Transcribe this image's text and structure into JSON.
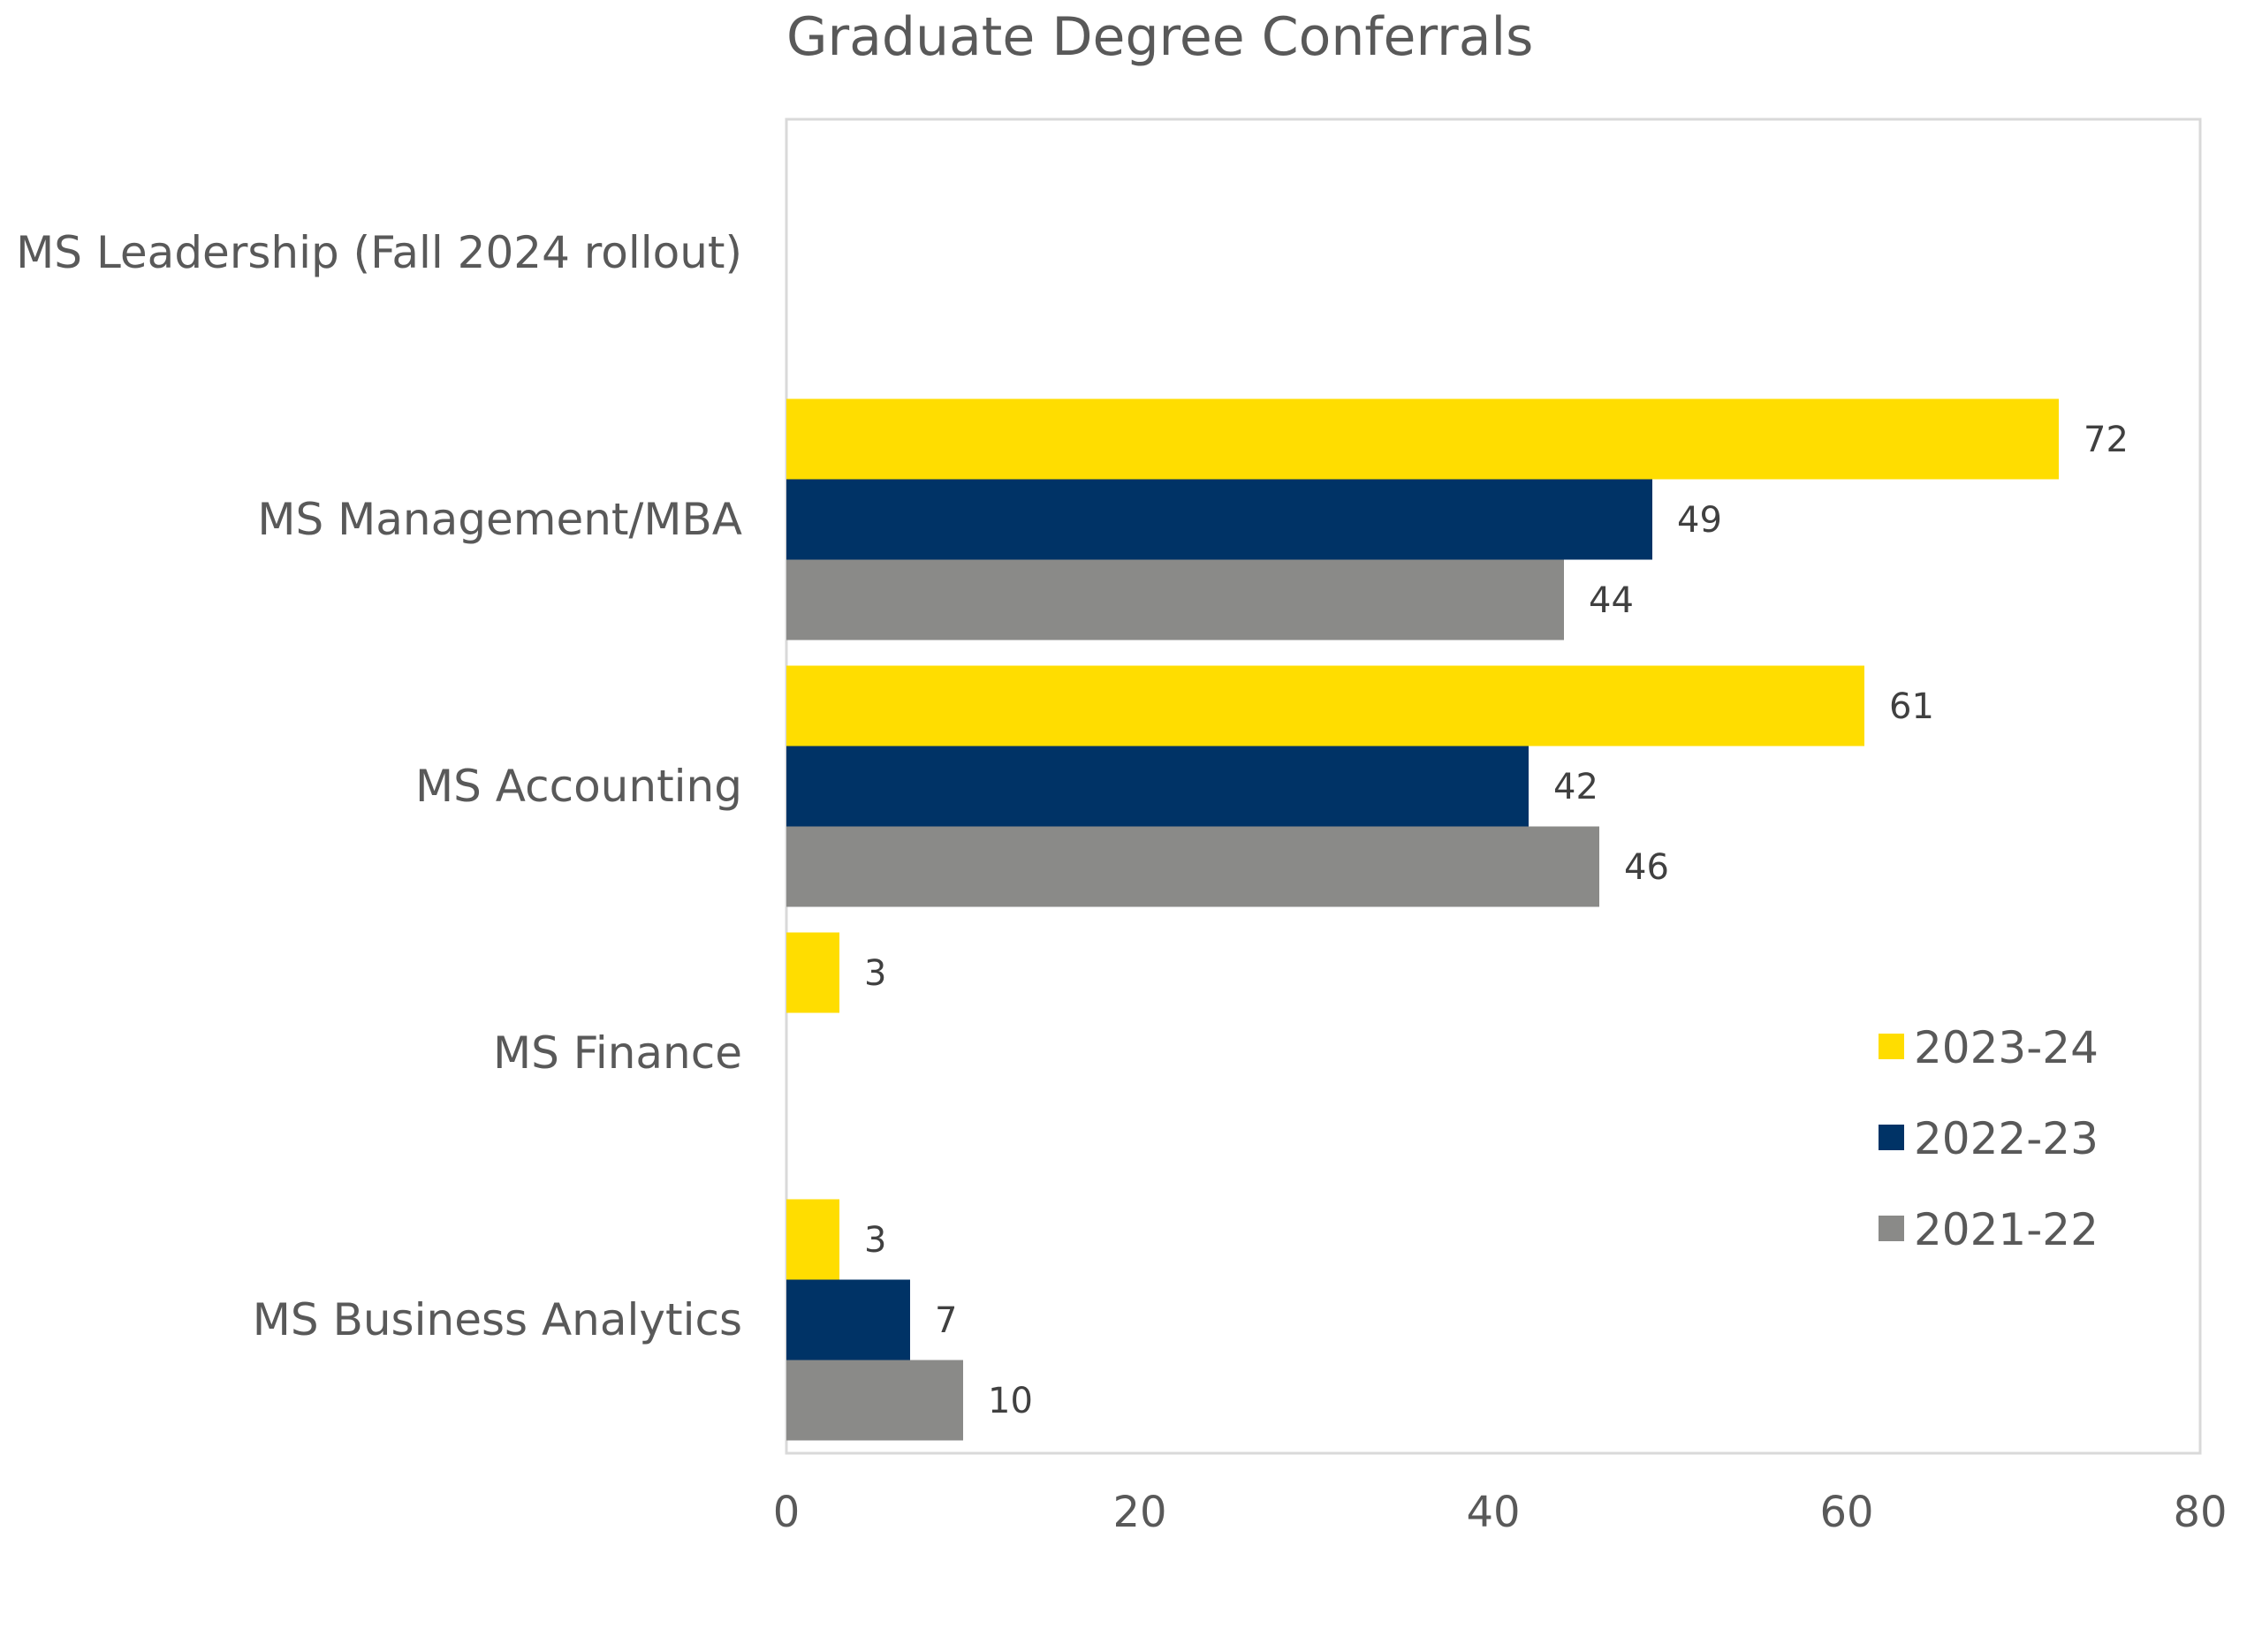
{
  "chart_data": {
    "type": "bar",
    "orientation": "horizontal",
    "title": "Graduate Degree Conferrals",
    "xlabel": "",
    "ylabel": "",
    "xlim": [
      0,
      80
    ],
    "x_ticks": [
      0,
      20,
      40,
      60,
      80
    ],
    "grid": false,
    "legend_position": "right",
    "categories": [
      "MS Leadership (Fall 2024 rollout)",
      "MS Management/MBA",
      "MS Accounting",
      "MS Finance",
      "MS Business Analytics"
    ],
    "series": [
      {
        "name": "2023-24",
        "color": "#FFDD00",
        "values": [
          null,
          72,
          61,
          3,
          3
        ]
      },
      {
        "name": "2022-23",
        "color": "#003366",
        "values": [
          null,
          49,
          42,
          null,
          7
        ]
      },
      {
        "name": "2021-22",
        "color": "#8A8A88",
        "values": [
          null,
          44,
          46,
          null,
          10
        ]
      }
    ]
  }
}
